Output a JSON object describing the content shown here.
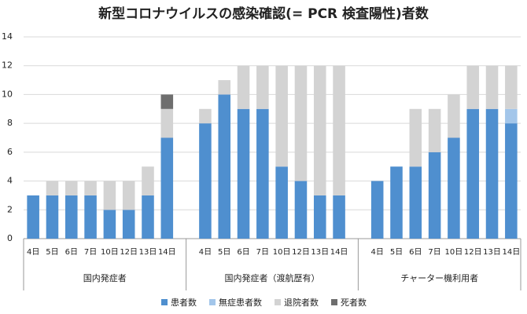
{
  "chart_data": {
    "type": "stacked_bar",
    "title": "新型コロナウイルスの感染確認(= PCR 検査陽性)者数",
    "groups": [
      "国内発症者",
      "国内発症者（渡航歴有）",
      "チャーター機利用者"
    ],
    "categories": [
      "4日",
      "5日",
      "6日",
      "7日",
      "10日",
      "12日",
      "13日",
      "14日",
      "4日",
      "5日",
      "6日",
      "7日",
      "10日",
      "12日",
      "13日",
      "14日",
      "4日",
      "5日",
      "6日",
      "7日",
      "10日",
      "12日",
      "13日",
      "14日"
    ],
    "series": [
      {
        "name": "患者数",
        "color": "#4f8fcf",
        "values": [
          3,
          3,
          3,
          3,
          2,
          2,
          3,
          7,
          8,
          10,
          9,
          9,
          5,
          4,
          3,
          3,
          4,
          5,
          5,
          6,
          7,
          9,
          9,
          8
        ]
      },
      {
        "name": "無症患者数",
        "color": "#a3c6ea",
        "values": [
          0,
          0,
          0,
          0,
          0,
          0,
          0,
          0,
          0,
          0,
          0,
          0,
          0,
          0,
          0,
          0,
          0,
          0,
          0,
          0,
          0,
          0,
          0,
          1
        ]
      },
      {
        "name": "退院者数",
        "color": "#d3d3d3",
        "values": [
          0,
          1,
          1,
          1,
          2,
          2,
          2,
          2,
          1,
          1,
          3,
          3,
          7,
          8,
          9,
          9,
          0,
          0,
          4,
          3,
          3,
          3,
          3,
          3
        ]
      },
      {
        "name": "死者数",
        "color": "#6e6e6e",
        "values": [
          0,
          0,
          0,
          0,
          0,
          0,
          0,
          1,
          0,
          0,
          0,
          0,
          0,
          0,
          0,
          0,
          0,
          0,
          0,
          0,
          0,
          0,
          0,
          0
        ]
      }
    ],
    "ylim": [
      0,
      14
    ],
    "yticks": [
      0,
      2,
      4,
      6,
      8,
      10,
      12,
      14
    ],
    "grid": true,
    "legend": "bottom"
  }
}
